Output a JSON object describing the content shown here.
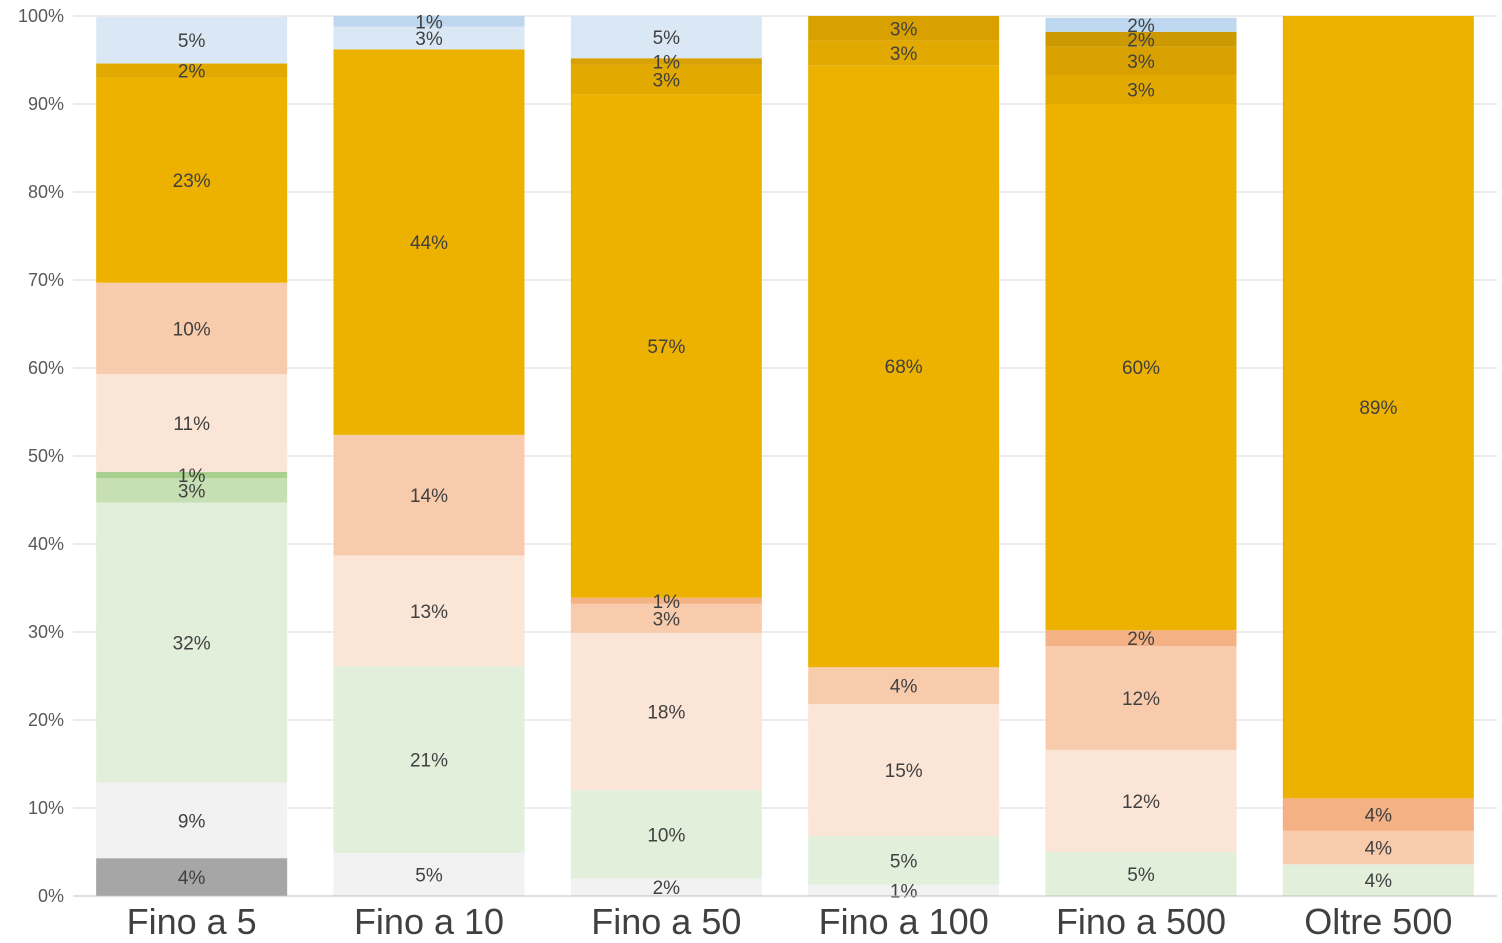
{
  "chart_data": {
    "type": "bar",
    "stacked": true,
    "percent_stacked": true,
    "categories": [
      "Fino a 5",
      "Fino a 10",
      "Fino a 50",
      "Fino a 100",
      "Fino a 500",
      "Oltre 500"
    ],
    "ylim": [
      0,
      100
    ],
    "y_ticks": [
      "0%",
      "10%",
      "20%",
      "30%",
      "40%",
      "50%",
      "60%",
      "70%",
      "80%",
      "90%",
      "100%"
    ],
    "grid": true,
    "legend": "none",
    "series": [
      {
        "color": "#a6a6a6",
        "values": [
          4.3,
          0,
          0,
          0,
          0,
          0
        ],
        "labels": [
          "4%",
          "",
          "",
          "",
          "",
          ""
        ]
      },
      {
        "color": "#f2f2f2",
        "values": [
          8.6,
          4.9,
          2.0,
          1.3,
          0,
          0
        ],
        "labels": [
          "9%",
          "5%",
          "2%",
          "1%",
          "",
          ""
        ]
      },
      {
        "color": "#e2efda",
        "values": [
          31.8,
          21.2,
          10.0,
          5.5,
          5.0,
          3.6
        ],
        "labels": [
          "32%",
          "21%",
          "10%",
          "5%",
          "5%",
          "4%"
        ]
      },
      {
        "color": "#c6e0b4",
        "values": [
          2.8,
          0,
          0,
          0,
          0,
          0
        ],
        "labels": [
          "3%",
          "",
          "",
          "",
          "",
          ""
        ]
      },
      {
        "color": "#a9d08e",
        "values": [
          0.7,
          0,
          0,
          0,
          0,
          0
        ],
        "labels": [
          "1%",
          "",
          "",
          "",
          "",
          ""
        ]
      },
      {
        "color": "#fbe5d6",
        "values": [
          11.1,
          12.6,
          17.9,
          15.0,
          11.6,
          0
        ],
        "labels": [
          "11%",
          "13%",
          "18%",
          "15%",
          "12%",
          ""
        ]
      },
      {
        "color": "#f8cbad",
        "values": [
          10.4,
          13.7,
          3.3,
          4.2,
          11.8,
          3.8
        ],
        "labels": [
          "10%",
          "14%",
          "3%",
          "4%",
          "12%",
          "4%"
        ]
      },
      {
        "color": "#f4b183",
        "values": [
          0,
          0,
          0.7,
          0,
          1.8,
          3.7
        ],
        "labels": [
          "",
          "",
          "1%",
          "",
          "2%",
          "4%"
        ]
      },
      {
        "color": "#edb100",
        "values": [
          23.3,
          43.8,
          57.2,
          68.4,
          59.8,
          88.9
        ],
        "labels": [
          "23%",
          "44%",
          "57%",
          "68%",
          "60%",
          "89%"
        ]
      },
      {
        "color": "#e2a900",
        "values": [
          1.6,
          0,
          3.4,
          2.8,
          3.3,
          0
        ],
        "labels": [
          "2%",
          "",
          "3%",
          "3%",
          "3%",
          ""
        ]
      },
      {
        "color": "#d9a100",
        "values": [
          0,
          0,
          0.7,
          2.8,
          3.2,
          0
        ],
        "labels": [
          "",
          "",
          "1%",
          "3%",
          "3%",
          ""
        ]
      },
      {
        "color": "#cc9900",
        "values": [
          0,
          0,
          0,
          0,
          1.7,
          0
        ],
        "labels": [
          "",
          "",
          "",
          "",
          "2%",
          ""
        ]
      },
      {
        "color": "#dae8f5",
        "values": [
          5.3,
          2.6,
          4.8,
          0,
          0,
          0
        ],
        "labels": [
          "5%",
          "3%",
          "5%",
          "",
          "",
          ""
        ]
      },
      {
        "color": "#bdd7ee",
        "values": [
          0,
          1.2,
          0,
          0,
          1.6,
          0
        ],
        "labels": [
          "",
          "1%",
          "",
          "",
          "2%",
          ""
        ]
      }
    ]
  }
}
